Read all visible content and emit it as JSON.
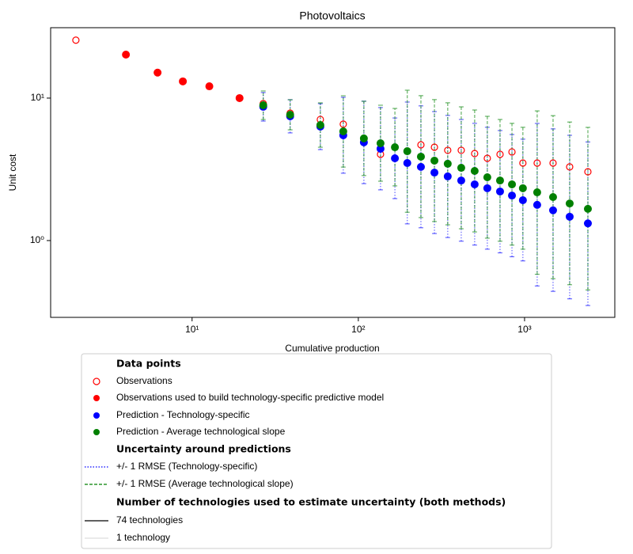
{
  "chart_data": {
    "type": "scatter",
    "title": "Photovoltaics",
    "x_label": "Cumulative production",
    "y_label": "Unit cost",
    "xscale": "log",
    "yscale": "log",
    "xlim": [
      1.41,
      3490
    ],
    "ylim": [
      0.289,
      31.2
    ],
    "xticks": [
      {
        "value": 10,
        "label": "10¹"
      },
      {
        "value": 100,
        "label": "10²"
      },
      {
        "value": 1000,
        "label": "10³"
      }
    ],
    "yticks": [
      {
        "value": 1,
        "label": "10⁰"
      },
      {
        "value": 10,
        "label": "10¹"
      }
    ],
    "series": [
      {
        "marker": "open",
        "color": "#ff0000",
        "x": [
          2.0,
          26.8,
          38.9,
          59.1,
          81.2,
          108,
          136,
          166,
          197,
          238,
          287,
          345,
          416,
          501,
          597,
          712,
          840,
          977,
          1191,
          1484,
          1868,
          2404
        ],
        "values": [
          25.5,
          9.15,
          7.84,
          7.08,
          6.56,
          5.14,
          4.03,
          3.78,
          4.24,
          4.7,
          4.52,
          4.3,
          4.3,
          4.08,
          3.78,
          4.03,
          4.19,
          3.5,
          3.5,
          3.5,
          3.29,
          3.04
        ]
      },
      {
        "marker": "filled",
        "color": "#ff0000",
        "x": [
          4.0,
          6.2,
          8.8,
          12.7,
          19.3
        ],
        "values": [
          20.2,
          15.1,
          13.1,
          12.1,
          10.0
        ]
      },
      {
        "marker": "filled",
        "color": "#0000ff",
        "error_dash": "dotted",
        "x": [
          26.8,
          38.9,
          59.1,
          81.2,
          108,
          136,
          166,
          197,
          238,
          287,
          345,
          416,
          501,
          597,
          712,
          840,
          977,
          1191,
          1484,
          1868,
          2404
        ],
        "values": [
          8.69,
          7.45,
          6.31,
          5.48,
          4.89,
          4.41,
          3.78,
          3.5,
          3.29,
          3.0,
          2.82,
          2.64,
          2.48,
          2.33,
          2.21,
          2.07,
          1.92,
          1.78,
          1.63,
          1.47,
          1.32
        ],
        "lower": [
          6.9,
          5.7,
          4.35,
          2.97,
          2.51,
          2.27,
          1.97,
          1.31,
          1.23,
          1.12,
          1.05,
          0.99,
          0.93,
          0.87,
          0.82,
          0.77,
          0.72,
          0.48,
          0.44,
          0.39,
          0.35
        ],
        "upper": [
          10.94,
          9.74,
          9.14,
          10.13,
          9.51,
          8.58,
          7.25,
          9.38,
          8.82,
          8.04,
          7.56,
          7.08,
          6.65,
          6.24,
          5.92,
          5.55,
          5.15,
          6.64,
          6.08,
          5.48,
          4.92
        ]
      },
      {
        "marker": "filled",
        "color": "#008000",
        "error_dash": "dashed",
        "x": [
          26.8,
          38.9,
          59.1,
          81.2,
          108,
          136,
          166,
          197,
          238,
          287,
          345,
          416,
          501,
          597,
          712,
          840,
          977,
          1191,
          1484,
          1868,
          2404
        ],
        "values": [
          8.91,
          7.64,
          6.47,
          5.84,
          5.21,
          4.82,
          4.52,
          4.24,
          3.88,
          3.64,
          3.46,
          3.24,
          3.08,
          2.78,
          2.64,
          2.48,
          2.33,
          2.18,
          2.02,
          1.82,
          1.67
        ],
        "lower": [
          7.08,
          5.99,
          4.52,
          3.28,
          2.86,
          2.61,
          2.42,
          1.58,
          1.45,
          1.36,
          1.29,
          1.21,
          1.15,
          1.04,
          0.99,
          0.93,
          0.87,
          0.58,
          0.54,
          0.49,
          0.45
        ],
        "upper": [
          11.22,
          9.74,
          9.26,
          10.38,
          9.5,
          8.91,
          8.46,
          11.36,
          10.4,
          9.76,
          9.27,
          8.68,
          8.25,
          7.45,
          7.08,
          6.65,
          6.24,
          8.13,
          7.53,
          6.79,
          6.23
        ]
      }
    ],
    "legend": [
      {
        "label": "Data points",
        "bold": true
      },
      {
        "label": "Observations",
        "marker": "open",
        "color": "#ff0000"
      },
      {
        "label": "Observations used to build technology-specific predictive model",
        "marker": "filled",
        "color": "#ff0000"
      },
      {
        "label": "Prediction - Technology-specific",
        "marker": "filled",
        "color": "#0000ff"
      },
      {
        "label": "Prediction - Average technological slope",
        "marker": "filled",
        "color": "#008000"
      },
      {
        "label": "Uncertainty around predictions",
        "bold": true
      },
      {
        "label": "+/- 1 RMSE (Technology-specific)",
        "marker": "line",
        "dash": "dotted",
        "color": "#0000ff"
      },
      {
        "label": "+/- 1 RMSE (Average technological slope)",
        "marker": "line",
        "dash": "dashed",
        "color": "#008000"
      },
      {
        "label": "Number of technologies used to estimate uncertainty (both methods)",
        "bold": true
      },
      {
        "label": "74 technologies",
        "marker": "line",
        "dash": "solid",
        "color": "#000000"
      },
      {
        "label": "1 technology",
        "marker": "line",
        "dash": "solid",
        "color": "#dddddd"
      }
    ]
  }
}
